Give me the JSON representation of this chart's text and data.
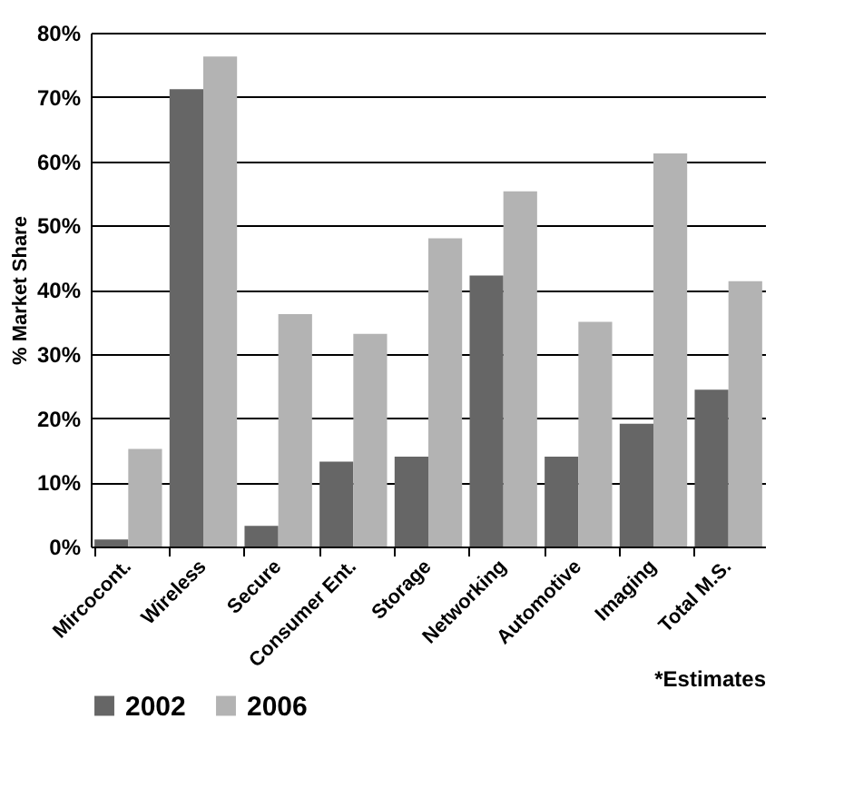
{
  "chart_data": {
    "type": "bar",
    "ylabel": "% Market Share",
    "categories": [
      "Mircocont.",
      "Wireless",
      "Secure",
      "Consumer Ent.",
      "Storage",
      "Networking",
      "Automotive",
      "Imaging",
      "Total M.S."
    ],
    "series": [
      {
        "name": "2002",
        "color": "#666666",
        "values": [
          1.1,
          71.2,
          3.2,
          13.2,
          14,
          42.2,
          14,
          19.1,
          24.4
        ]
      },
      {
        "name": "2006",
        "color": "#b3b3b3",
        "values": [
          15.2,
          76.3,
          36.2,
          33.1,
          48,
          55.3,
          35,
          61.2,
          41.3
        ]
      }
    ],
    "ylim": [
      0,
      80
    ],
    "yticks": [
      {
        "value": 0,
        "label": "0%"
      },
      {
        "value": 10,
        "label": "10%"
      },
      {
        "value": 20,
        "label": "20%"
      },
      {
        "value": 30,
        "label": "30%"
      },
      {
        "value": 40,
        "label": "40%"
      },
      {
        "value": 50,
        "label": "50%"
      },
      {
        "value": 60,
        "label": "60%"
      },
      {
        "value": 70,
        "label": "70%"
      },
      {
        "value": 80,
        "label": "80%"
      }
    ],
    "grid": "y",
    "legend": "bottom",
    "annotations": [
      "*Estimates"
    ]
  }
}
